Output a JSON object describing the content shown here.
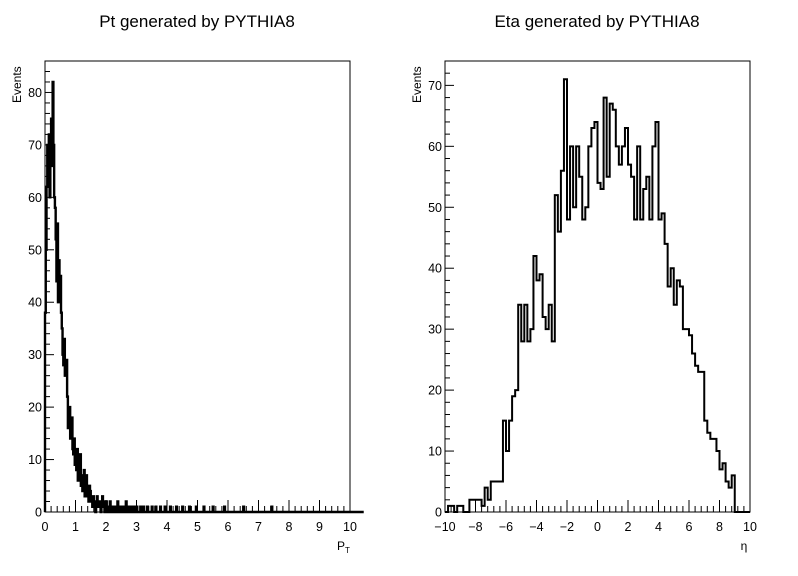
{
  "chart_data": [
    {
      "type": "bar",
      "title": "Pt generated by PYTHIA8",
      "xlabel": "P",
      "xlabel_sub": "T",
      "ylabel": "Events",
      "xlim": [
        0,
        10
      ],
      "ylim": [
        0,
        86
      ],
      "x_ticks": [
        "0",
        "1",
        "2",
        "3",
        "4",
        "5",
        "6",
        "7",
        "8",
        "9",
        "10"
      ],
      "y_ticks": [
        "0",
        "10",
        "20",
        "30",
        "40",
        "50",
        "60",
        "70",
        "80"
      ],
      "bin_width": 0.025,
      "x_start": 0,
      "values": [
        38,
        50,
        62,
        70,
        64,
        72,
        60,
        68,
        75,
        66,
        82,
        70,
        60,
        58,
        52,
        44,
        55,
        40,
        48,
        42,
        45,
        38,
        35,
        30,
        28,
        33,
        26,
        27,
        29,
        22,
        16,
        18,
        20,
        14,
        15,
        18,
        12,
        11,
        14,
        9,
        10,
        8,
        12,
        6,
        9,
        8,
        11,
        5,
        7,
        4,
        6,
        8,
        3,
        5,
        7,
        4,
        3,
        2,
        5,
        4,
        3,
        2,
        1,
        3,
        2,
        1,
        0,
        2,
        3,
        1,
        2,
        1,
        2,
        0,
        1,
        3,
        2,
        1,
        0,
        1,
        2,
        1,
        0,
        1,
        0,
        2,
        1,
        0,
        1,
        0,
        1,
        0,
        0,
        1,
        0,
        2,
        0,
        1,
        0,
        0,
        1,
        0,
        0,
        1,
        0,
        0,
        2,
        0,
        0,
        1,
        0,
        0,
        0,
        1,
        0,
        0,
        1,
        0,
        0,
        0,
        1,
        0,
        0,
        0,
        0,
        1,
        0,
        0,
        0,
        1,
        0,
        0,
        0,
        0,
        1,
        0,
        0,
        0,
        0,
        0,
        1,
        0,
        0,
        0,
        0,
        1,
        0,
        0,
        0,
        0,
        0,
        1,
        0,
        0,
        0,
        0,
        0,
        1,
        0,
        0,
        0,
        0,
        0,
        0,
        1,
        0,
        0,
        0,
        0,
        0,
        0,
        0,
        1,
        0,
        0,
        0,
        0,
        0,
        0,
        0,
        1,
        0,
        0,
        0,
        0,
        0,
        0,
        0,
        0,
        1,
        0,
        0,
        0,
        0,
        0,
        0,
        0,
        0,
        1,
        0,
        0,
        0,
        0,
        0,
        0,
        0,
        0,
        0,
        1,
        0,
        0,
        0,
        0,
        0,
        0,
        0,
        0,
        0,
        0,
        0,
        1,
        0,
        0,
        0,
        0,
        0,
        0,
        0,
        0,
        0,
        0,
        0,
        0,
        0,
        0,
        1,
        0,
        0,
        0,
        0,
        0,
        0,
        0,
        0,
        0,
        0,
        0,
        0,
        0,
        0,
        0,
        0,
        0,
        0,
        0,
        0,
        0,
        0,
        0,
        0,
        1,
        0,
        0,
        0,
        0,
        0,
        0,
        0,
        0,
        0,
        0,
        0,
        0,
        0,
        0,
        0,
        0,
        0,
        0,
        0,
        0,
        0,
        0,
        0,
        0,
        0,
        0,
        0,
        0,
        0,
        0,
        0,
        0,
        0,
        0,
        0,
        0,
        1,
        0,
        0,
        0,
        0,
        0,
        0,
        0,
        0,
        0,
        0,
        0,
        0,
        0,
        0,
        0,
        0,
        0,
        0,
        0,
        0,
        0,
        0,
        0,
        0,
        0,
        0,
        0,
        0,
        0,
        0,
        0,
        0,
        0,
        0,
        0,
        0,
        0,
        0,
        0,
        0,
        0,
        0,
        0,
        0,
        0,
        0,
        0,
        0,
        0,
        0,
        0,
        0,
        0,
        0,
        0,
        0,
        0,
        0,
        0,
        0,
        0,
        0,
        0,
        0,
        0,
        0,
        0,
        0,
        0,
        0,
        0,
        0,
        0,
        0,
        0,
        0,
        0,
        0,
        0,
        0,
        0,
        0,
        0,
        0,
        0,
        0,
        0,
        0,
        0,
        0,
        0,
        0,
        0,
        0,
        0,
        0,
        0,
        0,
        0,
        0,
        0,
        0,
        0,
        0,
        0,
        0,
        0,
        0,
        0,
        0,
        0,
        0,
        0,
        0,
        0,
        0,
        0,
        0,
        0,
        0
      ]
    },
    {
      "type": "bar",
      "title": "Eta generated by PYTHIA8",
      "xlabel": "η",
      "ylabel": "Events",
      "xlim": [
        -10,
        10
      ],
      "ylim": [
        0,
        74
      ],
      "x_ticks": [
        "−10",
        "−8",
        "−6",
        "−4",
        "−2",
        "0",
        "2",
        "4",
        "6",
        "8",
        "10"
      ],
      "y_ticks": [
        "0",
        "10",
        "20",
        "30",
        "40",
        "50",
        "60",
        "70"
      ],
      "bin_width": 0.2,
      "x_start": -10,
      "values": [
        0,
        1,
        1,
        0,
        1,
        1,
        0,
        0,
        2,
        2,
        2,
        2,
        1,
        4,
        2,
        5,
        5,
        5,
        5,
        15,
        10,
        15,
        19,
        20,
        34,
        28,
        34,
        28,
        30,
        42,
        38,
        39,
        32,
        30,
        34,
        28,
        52,
        46,
        56,
        71,
        48,
        60,
        50,
        60,
        55,
        48,
        50,
        60,
        63,
        64,
        54,
        53,
        68,
        55,
        67,
        66,
        60,
        57,
        60,
        63,
        57,
        55,
        48,
        60,
        48,
        53,
        55,
        48,
        60,
        64,
        48,
        49,
        44,
        37,
        40,
        34,
        38,
        37,
        30,
        30,
        29,
        26,
        24,
        23,
        23,
        15,
        13,
        12,
        12,
        10,
        7,
        8,
        5,
        4,
        6,
        0,
        0,
        0,
        0,
        0
      ]
    }
  ]
}
